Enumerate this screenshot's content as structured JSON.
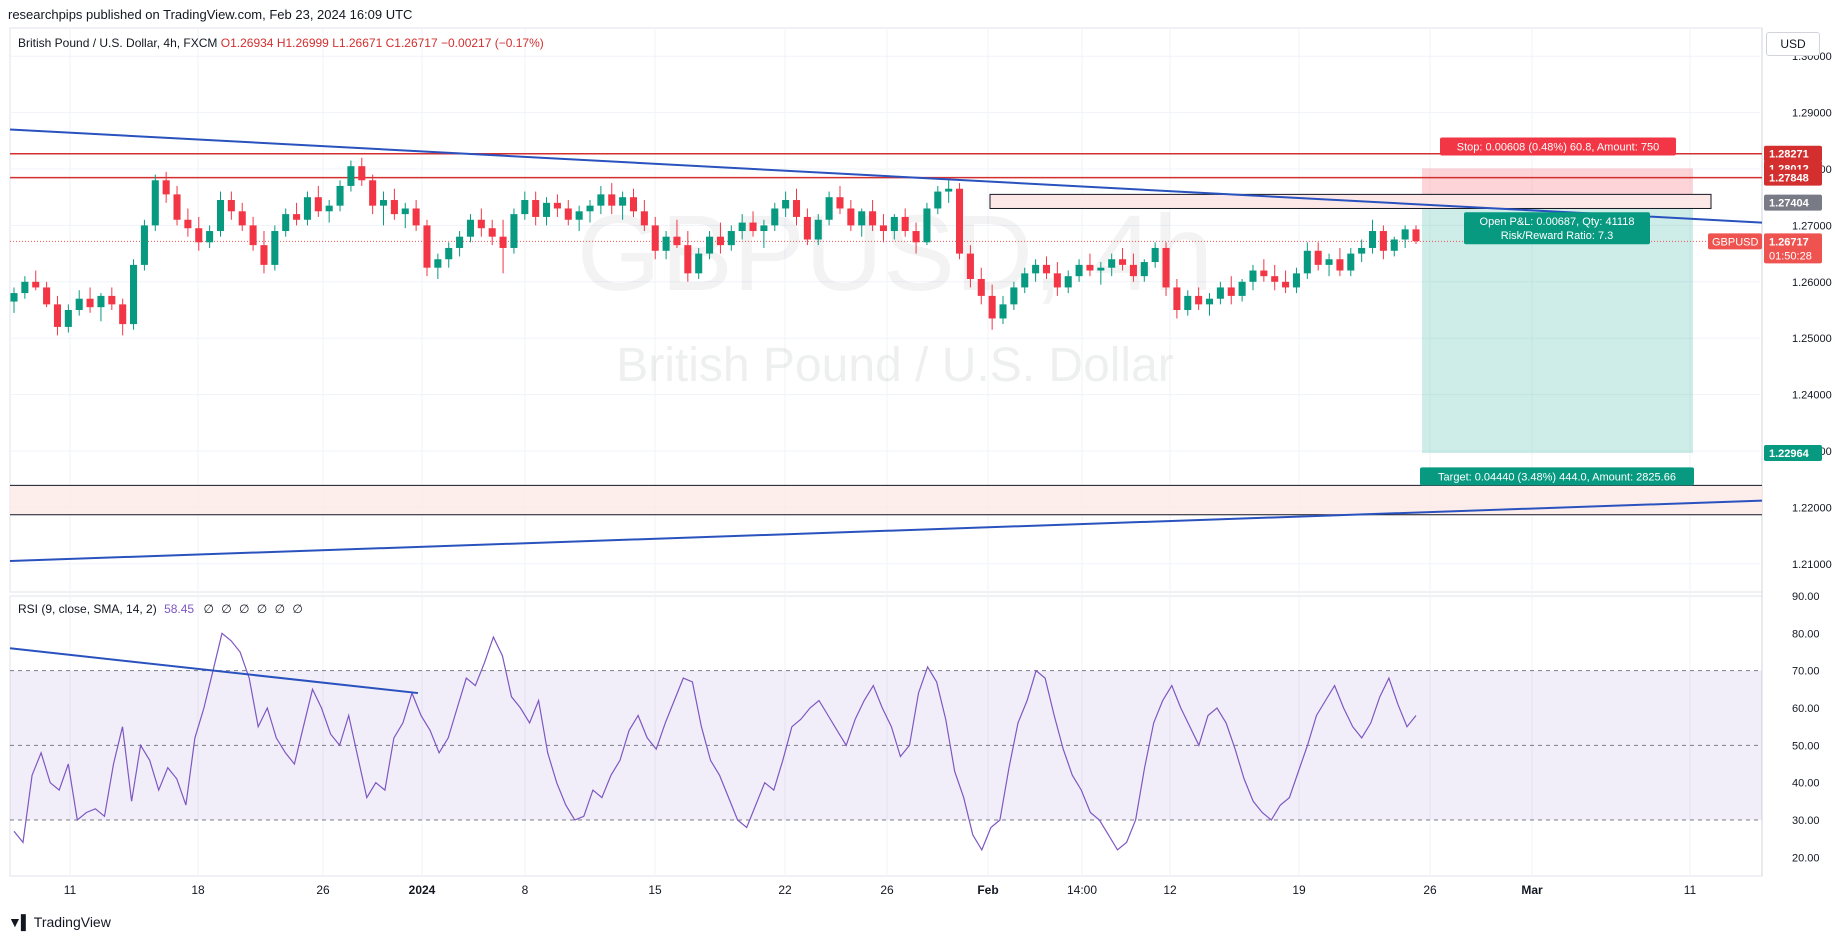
{
  "header": {
    "published": "researchpips published on TradingView.com, Feb 23, 2024 16:09 UTC"
  },
  "legend": {
    "symbol": "British Pound / U.S. Dollar, 4h, FXCM",
    "open": "O1.26934",
    "high": "H1.26999",
    "low": "L1.26671",
    "close": "C1.26717",
    "change": "−0.00217 (−0.17%)"
  },
  "currency": "USD",
  "watermark": {
    "ticker": "GBPUSD, 4h",
    "name": "British Pound / U.S. Dollar"
  },
  "rsi_legend": {
    "label": "RSI (9, close, SMA, 14, 2)",
    "value": "58.45",
    "zeros": "∅ ∅ ∅ ∅ ∅ ∅"
  },
  "position": {
    "stop_label": "Stop: 0.00608 (0.48%) 60.8, Amount: 750",
    "pnl_label": "Open P&L: 0.00687, Qty: 41118",
    "rr_label": "Risk/Reward Ratio: 7.3",
    "target_label": "Target: 0.04440 (3.48%) 444.0, Amount: 2825.66",
    "entry": 1.27404,
    "stop": 1.28012,
    "target": 1.22964
  },
  "price_tags": [
    {
      "text": "1.28271",
      "price": 1.28271,
      "color": "#d32f2f"
    },
    {
      "text": "1.28012",
      "price": 1.28012,
      "color": "#d32f2f"
    },
    {
      "text": "1.27848",
      "price": 1.27848,
      "color": "#d32f2f"
    },
    {
      "text": "1.27404",
      "price": 1.27404,
      "color": "#787b86"
    },
    {
      "text": "1.26717",
      "price": 1.26717,
      "color": "#ef5350",
      "sub": "01:50:28",
      "tag": "GBPUSD"
    },
    {
      "text": "1.22964",
      "price": 1.22964,
      "color": "#089981"
    }
  ],
  "footer": {
    "brand": "TradingView"
  },
  "chart_data": {
    "type": "candlestick",
    "title": "British Pound / U.S. Dollar, 4h, FXCM",
    "ylim": [
      1.205,
      1.305
    ],
    "y_ticks": [
      "1.30000",
      "1.29000",
      "1.28000",
      "1.27000",
      "1.26000",
      "1.25000",
      "1.24000",
      "1.23000",
      "1.22000",
      "1.21000"
    ],
    "x_ticks": [
      "11",
      "18",
      "26",
      "2024",
      "8",
      "15",
      "22",
      "26",
      "Feb",
      "14:00",
      "12",
      "19",
      "26",
      "Mar",
      "11"
    ],
    "horizontal_levels": [
      1.28271,
      1.27848,
      1.2239,
      1.2187
    ],
    "trendlines": [
      {
        "name": "descending",
        "from_price": 1.287,
        "to_price": 1.2705
      },
      {
        "name": "ascending",
        "from_price": 1.2105,
        "to_price": 1.2212
      }
    ],
    "candles": [
      [
        1.2565,
        1.259,
        1.2545,
        1.258
      ],
      [
        1.258,
        1.261,
        1.257,
        1.26
      ],
      [
        1.26,
        1.262,
        1.2585,
        1.259
      ],
      [
        1.259,
        1.26,
        1.2555,
        1.256
      ],
      [
        1.256,
        1.2575,
        1.2505,
        1.252
      ],
      [
        1.252,
        1.256,
        1.251,
        1.255
      ],
      [
        1.255,
        1.2585,
        1.254,
        1.257
      ],
      [
        1.257,
        1.259,
        1.2545,
        1.2555
      ],
      [
        1.2555,
        1.258,
        1.253,
        1.2575
      ],
      [
        1.2575,
        1.259,
        1.255,
        1.256
      ],
      [
        1.256,
        1.257,
        1.2505,
        1.2525
      ],
      [
        1.2525,
        1.264,
        1.2515,
        1.263
      ],
      [
        1.263,
        1.271,
        1.262,
        1.27
      ],
      [
        1.27,
        1.279,
        1.269,
        1.278
      ],
      [
        1.278,
        1.2795,
        1.274,
        1.2755
      ],
      [
        1.2755,
        1.277,
        1.27,
        1.271
      ],
      [
        1.271,
        1.273,
        1.268,
        1.2695
      ],
      [
        1.2695,
        1.2715,
        1.2655,
        1.267
      ],
      [
        1.267,
        1.27,
        1.266,
        1.269
      ],
      [
        1.269,
        1.276,
        1.268,
        1.2745
      ],
      [
        1.2745,
        1.276,
        1.271,
        1.2725
      ],
      [
        1.2725,
        1.274,
        1.269,
        1.27
      ],
      [
        1.27,
        1.2715,
        1.2655,
        1.2665
      ],
      [
        1.2665,
        1.269,
        1.2615,
        1.263
      ],
      [
        1.263,
        1.27,
        1.262,
        1.269
      ],
      [
        1.269,
        1.273,
        1.268,
        1.272
      ],
      [
        1.272,
        1.274,
        1.27,
        1.271
      ],
      [
        1.271,
        1.276,
        1.27,
        1.275
      ],
      [
        1.275,
        1.277,
        1.2715,
        1.2725
      ],
      [
        1.2725,
        1.2745,
        1.2705,
        1.2735
      ],
      [
        1.2735,
        1.278,
        1.2725,
        1.277
      ],
      [
        1.277,
        1.2815,
        1.276,
        1.2805
      ],
      [
        1.2805,
        1.282,
        1.277,
        1.278
      ],
      [
        1.278,
        1.279,
        1.272,
        1.2735
      ],
      [
        1.2735,
        1.276,
        1.27,
        1.2745
      ],
      [
        1.2745,
        1.2765,
        1.271,
        1.272
      ],
      [
        1.272,
        1.274,
        1.2695,
        1.273
      ],
      [
        1.273,
        1.2745,
        1.269,
        1.27
      ],
      [
        1.27,
        1.271,
        1.261,
        1.2625
      ],
      [
        1.2625,
        1.265,
        1.2605,
        1.264
      ],
      [
        1.264,
        1.267,
        1.2625,
        1.266
      ],
      [
        1.266,
        1.269,
        1.2645,
        1.268
      ],
      [
        1.268,
        1.272,
        1.267,
        1.271
      ],
      [
        1.271,
        1.273,
        1.268,
        1.2695
      ],
      [
        1.2695,
        1.271,
        1.2665,
        1.268
      ],
      [
        1.268,
        1.271,
        1.2615,
        1.266
      ],
      [
        1.266,
        1.273,
        1.265,
        1.272
      ],
      [
        1.272,
        1.276,
        1.271,
        1.2745
      ],
      [
        1.2745,
        1.276,
        1.27,
        1.2715
      ],
      [
        1.2715,
        1.275,
        1.27,
        1.274
      ],
      [
        1.274,
        1.2755,
        1.2715,
        1.273
      ],
      [
        1.273,
        1.2745,
        1.27,
        1.271
      ],
      [
        1.271,
        1.2735,
        1.269,
        1.2725
      ],
      [
        1.2725,
        1.2745,
        1.2705,
        1.2735
      ],
      [
        1.2735,
        1.277,
        1.272,
        1.2755
      ],
      [
        1.2755,
        1.2775,
        1.272,
        1.2735
      ],
      [
        1.2735,
        1.276,
        1.271,
        1.275
      ],
      [
        1.275,
        1.2765,
        1.2715,
        1.2725
      ],
      [
        1.2725,
        1.2745,
        1.269,
        1.27
      ],
      [
        1.27,
        1.2715,
        1.264,
        1.2655
      ],
      [
        1.2655,
        1.269,
        1.264,
        1.268
      ],
      [
        1.268,
        1.271,
        1.266,
        1.2665
      ],
      [
        1.2665,
        1.269,
        1.26,
        1.2615
      ],
      [
        1.2615,
        1.266,
        1.2605,
        1.265
      ],
      [
        1.265,
        1.269,
        1.264,
        1.268
      ],
      [
        1.268,
        1.2705,
        1.265,
        1.2665
      ],
      [
        1.2665,
        1.27,
        1.2655,
        1.269
      ],
      [
        1.269,
        1.272,
        1.2675,
        1.2705
      ],
      [
        1.2705,
        1.2725,
        1.268,
        1.269
      ],
      [
        1.269,
        1.271,
        1.266,
        1.27
      ],
      [
        1.27,
        1.274,
        1.269,
        1.273
      ],
      [
        1.273,
        1.276,
        1.2715,
        1.2745
      ],
      [
        1.2745,
        1.2765,
        1.27,
        1.2715
      ],
      [
        1.2715,
        1.273,
        1.2665,
        1.2675
      ],
      [
        1.2675,
        1.272,
        1.2665,
        1.271
      ],
      [
        1.271,
        1.276,
        1.27,
        1.275
      ],
      [
        1.275,
        1.277,
        1.272,
        1.273
      ],
      [
        1.273,
        1.2745,
        1.269,
        1.27
      ],
      [
        1.27,
        1.273,
        1.268,
        1.2725
      ],
      [
        1.2725,
        1.2745,
        1.269,
        1.27
      ],
      [
        1.27,
        1.272,
        1.267,
        1.269
      ],
      [
        1.269,
        1.272,
        1.2675,
        1.2715
      ],
      [
        1.2715,
        1.273,
        1.268,
        1.269
      ],
      [
        1.269,
        1.2705,
        1.265,
        1.267
      ],
      [
        1.267,
        1.274,
        1.2665,
        1.273
      ],
      [
        1.273,
        1.277,
        1.272,
        1.276
      ],
      [
        1.276,
        1.278,
        1.274,
        1.2765
      ],
      [
        1.2765,
        1.2775,
        1.264,
        1.265
      ],
      [
        1.265,
        1.2665,
        1.259,
        1.2605
      ],
      [
        1.2605,
        1.2625,
        1.256,
        1.2575
      ],
      [
        1.2575,
        1.2595,
        1.2515,
        1.2535
      ],
      [
        1.2535,
        1.2575,
        1.2525,
        1.256
      ],
      [
        1.256,
        1.26,
        1.255,
        1.259
      ],
      [
        1.259,
        1.2625,
        1.258,
        1.2615
      ],
      [
        1.2615,
        1.264,
        1.26,
        1.263
      ],
      [
        1.263,
        1.2645,
        1.2605,
        1.2615
      ],
      [
        1.2615,
        1.2635,
        1.2575,
        1.259
      ],
      [
        1.259,
        1.262,
        1.258,
        1.261
      ],
      [
        1.261,
        1.264,
        1.26,
        1.263
      ],
      [
        1.263,
        1.265,
        1.261,
        1.262
      ],
      [
        1.262,
        1.2635,
        1.2595,
        1.2625
      ],
      [
        1.2625,
        1.265,
        1.261,
        1.264
      ],
      [
        1.264,
        1.266,
        1.262,
        1.263
      ],
      [
        1.263,
        1.265,
        1.26,
        1.261
      ],
      [
        1.261,
        1.264,
        1.26,
        1.2635
      ],
      [
        1.2635,
        1.267,
        1.2625,
        1.266
      ],
      [
        1.266,
        1.267,
        1.2575,
        1.259
      ],
      [
        1.259,
        1.2605,
        1.2535,
        1.255
      ],
      [
        1.255,
        1.2585,
        1.254,
        1.2575
      ],
      [
        1.2575,
        1.259,
        1.255,
        1.256
      ],
      [
        1.256,
        1.258,
        1.254,
        1.257
      ],
      [
        1.257,
        1.26,
        1.256,
        1.259
      ],
      [
        1.259,
        1.261,
        1.256,
        1.2575
      ],
      [
        1.2575,
        1.2605,
        1.2565,
        1.26
      ],
      [
        1.26,
        1.263,
        1.2585,
        1.262
      ],
      [
        1.262,
        1.264,
        1.26,
        1.261
      ],
      [
        1.261,
        1.263,
        1.2585,
        1.26
      ],
      [
        1.26,
        1.262,
        1.258,
        1.259
      ],
      [
        1.259,
        1.2625,
        1.258,
        1.2615
      ],
      [
        1.2615,
        1.267,
        1.2605,
        1.2655
      ],
      [
        1.2655,
        1.267,
        1.262,
        1.263
      ],
      [
        1.263,
        1.265,
        1.261,
        1.264
      ],
      [
        1.264,
        1.266,
        1.261,
        1.262
      ],
      [
        1.262,
        1.266,
        1.261,
        1.265
      ],
      [
        1.265,
        1.2675,
        1.2635,
        1.266
      ],
      [
        1.266,
        1.271,
        1.265,
        1.269
      ],
      [
        1.269,
        1.27,
        1.264,
        1.2655
      ],
      [
        1.2655,
        1.268,
        1.2645,
        1.2675
      ],
      [
        1.2675,
        1.27,
        1.266,
        1.2693
      ],
      [
        1.2693,
        1.27,
        1.2667,
        1.2672
      ]
    ],
    "rsi": {
      "label": "RSI (9, close, SMA, 14, 2)",
      "ylim": [
        15,
        90
      ],
      "y_ticks": [
        "90.00",
        "80.00",
        "70.00",
        "60.00",
        "50.00",
        "40.00",
        "30.00",
        "20.00"
      ],
      "band": [
        30,
        70
      ],
      "mid": 50,
      "values": [
        27,
        24,
        42,
        48,
        40,
        38,
        45,
        30,
        32,
        33,
        31,
        45,
        55,
        35,
        50,
        46,
        38,
        44,
        41,
        34,
        52,
        60,
        70,
        80,
        78,
        75,
        68,
        55,
        60,
        52,
        48,
        45,
        55,
        65,
        60,
        53,
        50,
        58,
        47,
        36,
        40,
        38,
        52,
        56,
        64,
        58,
        54,
        48,
        52,
        60,
        68,
        66,
        72,
        79,
        74,
        63,
        60,
        56,
        62,
        48,
        40,
        34,
        30,
        31,
        38,
        36,
        42,
        46,
        54,
        58,
        52,
        49,
        56,
        62,
        68,
        67,
        55,
        46,
        42,
        36,
        30,
        28,
        34,
        40,
        38,
        46,
        55,
        57,
        60,
        62,
        58,
        54,
        50,
        57,
        62,
        66,
        60,
        55,
        47,
        50,
        64,
        71,
        67,
        57,
        43,
        36,
        26,
        22,
        28,
        30,
        44,
        56,
        62,
        70,
        68,
        58,
        49,
        42,
        38,
        32,
        30,
        26,
        22,
        24,
        30,
        44,
        56,
        62,
        66,
        60,
        55,
        50,
        58,
        60,
        56,
        49,
        41,
        35,
        32,
        30,
        34,
        36,
        43,
        50,
        58,
        62,
        66,
        60,
        55,
        52,
        56,
        63,
        68,
        61,
        55,
        58
      ],
      "trendline": {
        "from": 76,
        "to": 64
      }
    }
  }
}
